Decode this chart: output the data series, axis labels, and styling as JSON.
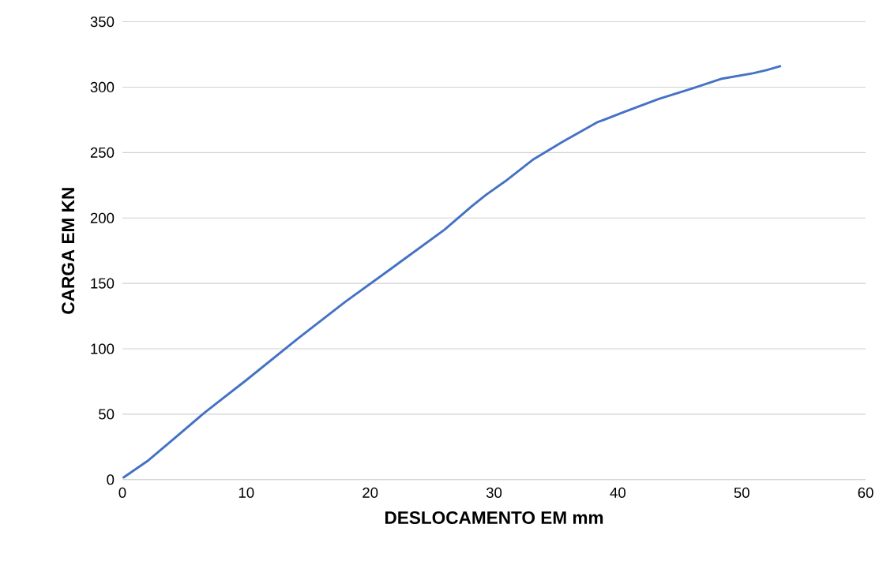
{
  "chart_data": {
    "type": "line",
    "xlabel": "DESLOCAMENTO EM mm",
    "ylabel": "CARGA EM KN",
    "series": [
      {
        "color": "#4472c4",
        "x": [
          0.1,
          2,
          4,
          6.7,
          10,
          14.2,
          18,
          21.8,
          26,
          28.2,
          29.4,
          30.9,
          33.2,
          35.5,
          38.3,
          40.5,
          43.3,
          46,
          48.4,
          50.9,
          52,
          53.1
        ],
        "values": [
          1.7,
          14,
          30,
          51.7,
          76,
          108,
          136,
          162,
          191,
          209,
          218,
          228,
          245,
          258,
          273,
          281,
          291,
          299,
          306.5,
          310.6,
          313,
          316
        ]
      }
    ],
    "xlim": [
      0,
      60
    ],
    "xticks": [
      0,
      10,
      20,
      30,
      40,
      50,
      60
    ],
    "ylim": [
      0,
      350
    ],
    "yticks": [
      0,
      50,
      100,
      150,
      200,
      250,
      300,
      350
    ],
    "grid": "y",
    "line_style": "solid",
    "marker": "none"
  }
}
